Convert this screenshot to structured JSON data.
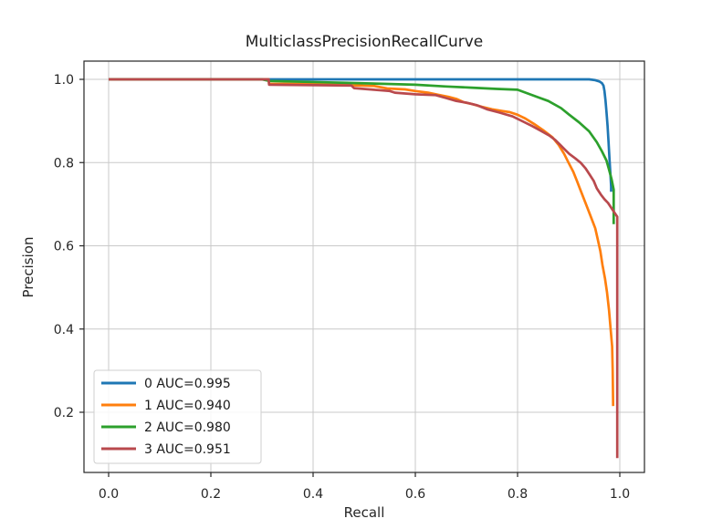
{
  "chart_data": {
    "type": "line",
    "title": "MulticlassPrecisionRecallCurve",
    "xlabel": "Recall",
    "ylabel": "Precision",
    "xlim": [
      -0.05,
      1.05
    ],
    "ylim": [
      0.05,
      1.04
    ],
    "x_ticks": [
      0.0,
      0.2,
      0.4,
      0.6,
      0.8,
      1.0
    ],
    "y_ticks": [
      0.2,
      0.4,
      0.6,
      0.8,
      1.0
    ],
    "grid": true,
    "legend_position": "lower left",
    "colors": {
      "grid": "#c9c9c9",
      "frame": "#262626",
      "tick_text": "#262626",
      "legend_border": "#cfcfcf",
      "legend_bg": "#ffffff"
    },
    "series": [
      {
        "name": "0 AUC=0.995",
        "class_label": "0",
        "auc": 0.995,
        "color": "#1f77b4",
        "points": [
          [
            0,
            1
          ],
          [
            0.94,
            1
          ],
          [
            0.952,
            0.998
          ],
          [
            0.96,
            0.995
          ],
          [
            0.965,
            0.991
          ],
          [
            0.968,
            0.985
          ],
          [
            0.97,
            0.972
          ],
          [
            0.972,
            0.95
          ],
          [
            0.974,
            0.922
          ],
          [
            0.976,
            0.888
          ],
          [
            0.978,
            0.848
          ],
          [
            0.98,
            0.805
          ],
          [
            0.982,
            0.766
          ],
          [
            0.983,
            0.742
          ],
          [
            0.983,
            0.73
          ]
        ]
      },
      {
        "name": "1 AUC=0.940",
        "class_label": "1",
        "auc": 0.94,
        "color": "#ff7f0e",
        "points": [
          [
            0,
            1
          ],
          [
            0.313,
            1
          ],
          [
            0.314,
            0.989
          ],
          [
            0.42,
            0.989
          ],
          [
            0.47,
            0.986
          ],
          [
            0.52,
            0.984
          ],
          [
            0.545,
            0.978
          ],
          [
            0.58,
            0.976
          ],
          [
            0.6,
            0.972
          ],
          [
            0.625,
            0.968
          ],
          [
            0.645,
            0.963
          ],
          [
            0.665,
            0.958
          ],
          [
            0.68,
            0.953
          ],
          [
            0.695,
            0.945
          ],
          [
            0.71,
            0.941
          ],
          [
            0.73,
            0.934
          ],
          [
            0.75,
            0.928
          ],
          [
            0.77,
            0.924
          ],
          [
            0.785,
            0.921
          ],
          [
            0.8,
            0.915
          ],
          [
            0.815,
            0.906
          ],
          [
            0.832,
            0.893
          ],
          [
            0.85,
            0.878
          ],
          [
            0.868,
            0.861
          ],
          [
            0.88,
            0.843
          ],
          [
            0.891,
            0.821
          ],
          [
            0.9,
            0.799
          ],
          [
            0.909,
            0.778
          ],
          [
            0.916,
            0.756
          ],
          [
            0.923,
            0.734
          ],
          [
            0.93,
            0.712
          ],
          [
            0.937,
            0.69
          ],
          [
            0.944,
            0.668
          ],
          [
            0.952,
            0.642
          ],
          [
            0.957,
            0.615
          ],
          [
            0.962,
            0.587
          ],
          [
            0.966,
            0.554
          ],
          [
            0.971,
            0.521
          ],
          [
            0.975,
            0.488
          ],
          [
            0.979,
            0.445
          ],
          [
            0.982,
            0.401
          ],
          [
            0.985,
            0.358
          ],
          [
            0.986,
            0.3
          ],
          [
            0.987,
            0.215
          ]
        ]
      },
      {
        "name": "2 AUC=0.980",
        "class_label": "2",
        "auc": 0.98,
        "color": "#2ca02c",
        "points": [
          [
            0,
            1
          ],
          [
            0.3,
            1
          ],
          [
            0.315,
            0.996
          ],
          [
            0.42,
            0.993
          ],
          [
            0.52,
            0.99
          ],
          [
            0.6,
            0.987
          ],
          [
            0.66,
            0.983
          ],
          [
            0.71,
            0.98
          ],
          [
            0.76,
            0.977
          ],
          [
            0.8,
            0.975
          ],
          [
            0.82,
            0.966
          ],
          [
            0.84,
            0.957
          ],
          [
            0.86,
            0.948
          ],
          [
            0.885,
            0.931
          ],
          [
            0.9,
            0.916
          ],
          [
            0.92,
            0.897
          ],
          [
            0.94,
            0.875
          ],
          [
            0.955,
            0.849
          ],
          [
            0.965,
            0.827
          ],
          [
            0.974,
            0.805
          ],
          [
            0.979,
            0.783
          ],
          [
            0.984,
            0.76
          ],
          [
            0.988,
            0.735
          ],
          [
            0.988,
            0.652
          ]
        ]
      },
      {
        "name": "3 AUC=0.951",
        "class_label": "3",
        "auc": 0.951,
        "color": "#b9494d",
        "points": [
          [
            0,
            1
          ],
          [
            0.313,
            1
          ],
          [
            0.314,
            0.987
          ],
          [
            0.475,
            0.985
          ],
          [
            0.48,
            0.979
          ],
          [
            0.55,
            0.972
          ],
          [
            0.56,
            0.968
          ],
          [
            0.6,
            0.964
          ],
          [
            0.64,
            0.962
          ],
          [
            0.66,
            0.955
          ],
          [
            0.68,
            0.948
          ],
          [
            0.7,
            0.944
          ],
          [
            0.72,
            0.938
          ],
          [
            0.74,
            0.928
          ],
          [
            0.765,
            0.92
          ],
          [
            0.79,
            0.911
          ],
          [
            0.81,
            0.899
          ],
          [
            0.828,
            0.888
          ],
          [
            0.846,
            0.876
          ],
          [
            0.862,
            0.865
          ],
          [
            0.874,
            0.854
          ],
          [
            0.883,
            0.843
          ],
          [
            0.892,
            0.832
          ],
          [
            0.901,
            0.821
          ],
          [
            0.913,
            0.81
          ],
          [
            0.924,
            0.799
          ],
          [
            0.933,
            0.786
          ],
          [
            0.941,
            0.771
          ],
          [
            0.949,
            0.756
          ],
          [
            0.955,
            0.738
          ],
          [
            0.963,
            0.723
          ],
          [
            0.97,
            0.712
          ],
          [
            0.977,
            0.703
          ],
          [
            0.984,
            0.69
          ],
          [
            0.99,
            0.679
          ],
          [
            0.995,
            0.67
          ],
          [
            0.995,
            0.09
          ]
        ]
      }
    ]
  }
}
